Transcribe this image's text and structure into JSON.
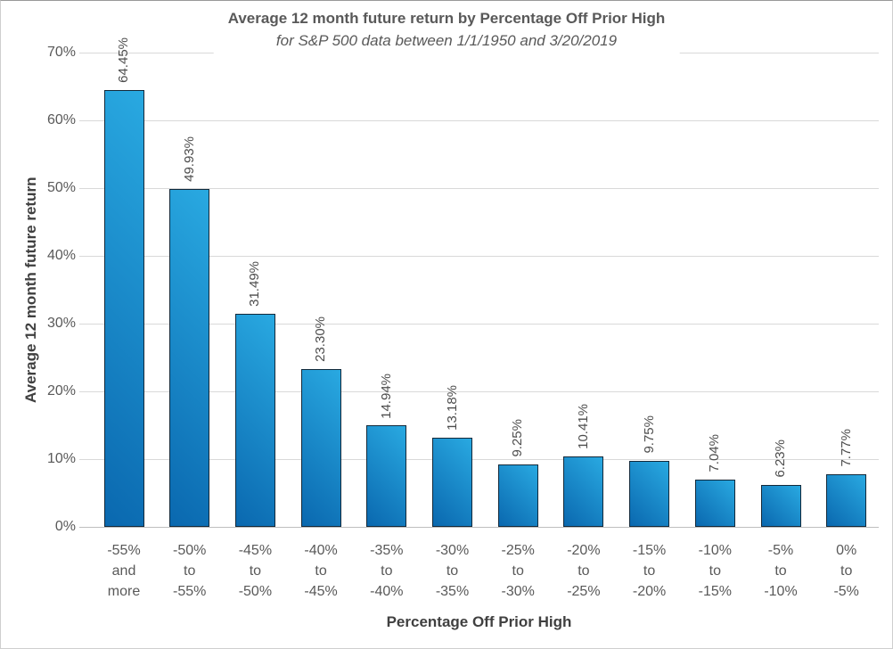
{
  "chart_data": {
    "type": "bar",
    "title": "Average 12 month future return by Percentage Off Prior High",
    "subtitle": "for S&P 500 data between 1/1/1950 and 3/20/2019",
    "xlabel": "Percentage Off Prior High",
    "ylabel": "Average 12 month future return",
    "ylim": [
      0,
      70
    ],
    "grid": true,
    "legend": false,
    "ytick_labels": [
      "70%",
      "60%",
      "50%",
      "40%",
      "30%",
      "20%",
      "10%",
      "0%"
    ],
    "ytick_values": [
      70,
      60,
      50,
      40,
      30,
      20,
      10,
      0
    ],
    "categories": [
      "-55% and more",
      "-50% to -55%",
      "-45% to -50%",
      "-40% to -45%",
      "-35% to -40%",
      "-30% to -35%",
      "-25% to -30%",
      "-20% to -25%",
      "-15% to -20%",
      "-10% to -15%",
      "-5% to -10%",
      "0% to -5%"
    ],
    "category_lines": [
      [
        "-55%",
        "and",
        "more"
      ],
      [
        "-50%",
        "to",
        "-55%"
      ],
      [
        "-45%",
        "to",
        "-50%"
      ],
      [
        "-40%",
        "to",
        "-45%"
      ],
      [
        "-35%",
        "to",
        "-40%"
      ],
      [
        "-30%",
        "to",
        "-35%"
      ],
      [
        "-25%",
        "to",
        "-30%"
      ],
      [
        "-20%",
        "to",
        "-25%"
      ],
      [
        "-15%",
        "to",
        "-20%"
      ],
      [
        "-10%",
        "to",
        "-15%"
      ],
      [
        "-5%",
        "to",
        "-10%"
      ],
      [
        "0%",
        "to",
        "-5%"
      ]
    ],
    "values": [
      64.45,
      49.93,
      31.49,
      23.3,
      14.94,
      13.18,
      9.25,
      10.41,
      9.75,
      7.04,
      6.23,
      7.77
    ],
    "value_labels": [
      "64.45%",
      "49.93%",
      "31.49%",
      "23.30%",
      "14.94%",
      "13.18%",
      "9.25%",
      "10.41%",
      "9.75%",
      "7.04%",
      "6.23%",
      "7.77%"
    ]
  },
  "colors": {
    "bar_gradient_light": "#29a9e1",
    "bar_gradient_dark": "#0a68af",
    "bar_border": "#13293a",
    "gridline": "#d9d9d9",
    "baseline": "#bfbfbf",
    "title_text": "#595959",
    "axis_title_text": "#404040",
    "tick_text": "#595959",
    "data_label_text": "#4d4d4d"
  }
}
